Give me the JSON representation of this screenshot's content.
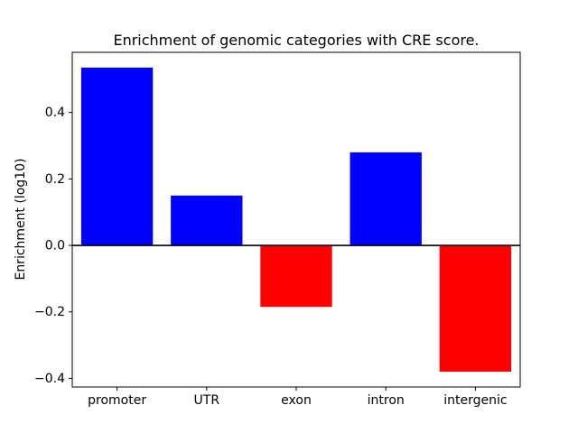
{
  "chart_data": {
    "type": "bar",
    "title": "Enrichment of genomic categories with CRE score.",
    "xlabel": "",
    "ylabel": "Enrichment (log10)",
    "categories": [
      "promoter",
      "UTR",
      "exon",
      "intron",
      "intergenic"
    ],
    "values": [
      0.535,
      0.15,
      -0.185,
      0.28,
      -0.38
    ],
    "bar_colors": [
      "#0000ff",
      "#0000ff",
      "#ff0000",
      "#0000ff",
      "#ff0000"
    ],
    "colors": {
      "positive": "#0000ff",
      "negative": "#ff0000",
      "axis": "#000000",
      "background": "#ffffff"
    },
    "ylim": [
      -0.426,
      0.581
    ],
    "yticks": {
      "values": [
        -0.4,
        -0.2,
        0.0,
        0.2,
        0.4
      ],
      "labels": [
        "−0.4",
        "−0.2",
        "0.0",
        "0.2",
        "0.4"
      ]
    },
    "bar_width_fraction": 0.8,
    "zero_line": true,
    "grid": false,
    "legend_position": "none"
  }
}
